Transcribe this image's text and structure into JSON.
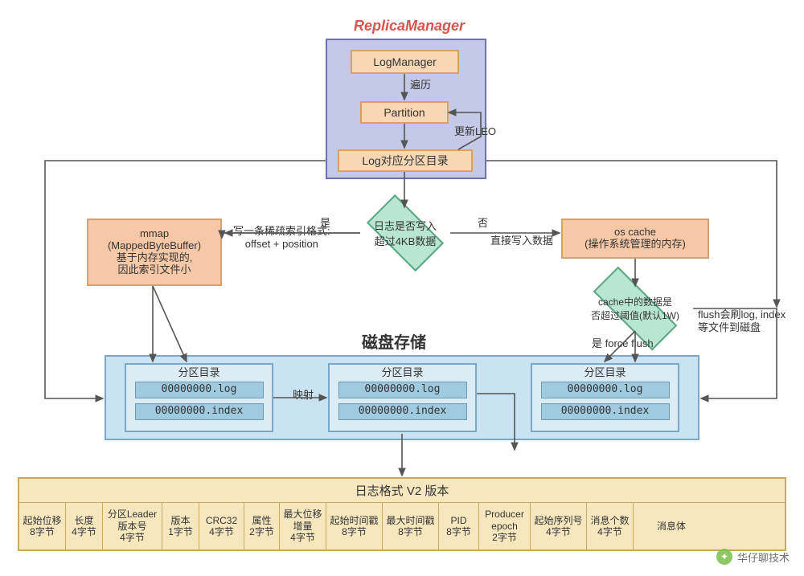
{
  "title": "ReplicaManager",
  "rm": {
    "log_manager": "LogManager",
    "traverse": "遍历",
    "partition": "Partition",
    "update_leo": "更新LEO",
    "log_dir": "Log对应分区目录"
  },
  "decision1": {
    "text": "日志是否写入\n超过4KB数据",
    "yes": "是",
    "no": "否"
  },
  "yes_note": "写一条稀疏索引格式:\noffset + position",
  "no_note": "直接写入数据",
  "mmap": {
    "l1": "mmap",
    "l2": "(MappedByteBuffer)",
    "l3": "基于内存实现的,",
    "l4": "因此索引文件小"
  },
  "oscache": {
    "l1": "os cache",
    "l2": "(操作系统管理的内存)"
  },
  "decision2": {
    "text": "cache中的数据是\n否超过阈值(默认1W)",
    "path": "是 force flush"
  },
  "flush_note": "flush会刷log, index\n等文件到磁盘",
  "disk_title": "磁盘存储",
  "map_label": "映射",
  "partition_dir": {
    "title": "分区目录",
    "f1": "00000000.log",
    "f2": "00000000.index"
  },
  "logfmt": {
    "title": "日志格式 V2 版本",
    "cols": [
      {
        "l1": "起始位移",
        "l2": "8字节",
        "w": 58
      },
      {
        "l1": "长度",
        "l2": "4字节",
        "w": 46
      },
      {
        "l1": "分区Leader",
        "l2": "版本号",
        "l3": "4字节",
        "w": 74
      },
      {
        "l1": "版本",
        "l2": "1字节",
        "w": 46
      },
      {
        "l1": "CRC32",
        "l2": "4字节",
        "w": 56
      },
      {
        "l1": "属性",
        "l2": "2字节",
        "w": 44
      },
      {
        "l1": "最大位移",
        "l2": "增量",
        "l3": "4字节",
        "w": 58
      },
      {
        "l1": "起始时间戳",
        "l2": "8字节",
        "w": 70
      },
      {
        "l1": "最大时间戳",
        "l2": "8字节",
        "w": 70
      },
      {
        "l1": "PID",
        "l2": "8字节",
        "w": 50
      },
      {
        "l1": "Producer",
        "l2": "epoch",
        "l3": "2字节",
        "w": 64
      },
      {
        "l1": "起始序列号",
        "l2": "4字节",
        "w": 70
      },
      {
        "l1": "消息个数",
        "l2": "4字节",
        "w": 58
      },
      {
        "l1": "消息体",
        "l2": "",
        "w": 94
      }
    ]
  },
  "watermark": "华仔聊技术",
  "colors": {
    "arrow": "#555555"
  }
}
